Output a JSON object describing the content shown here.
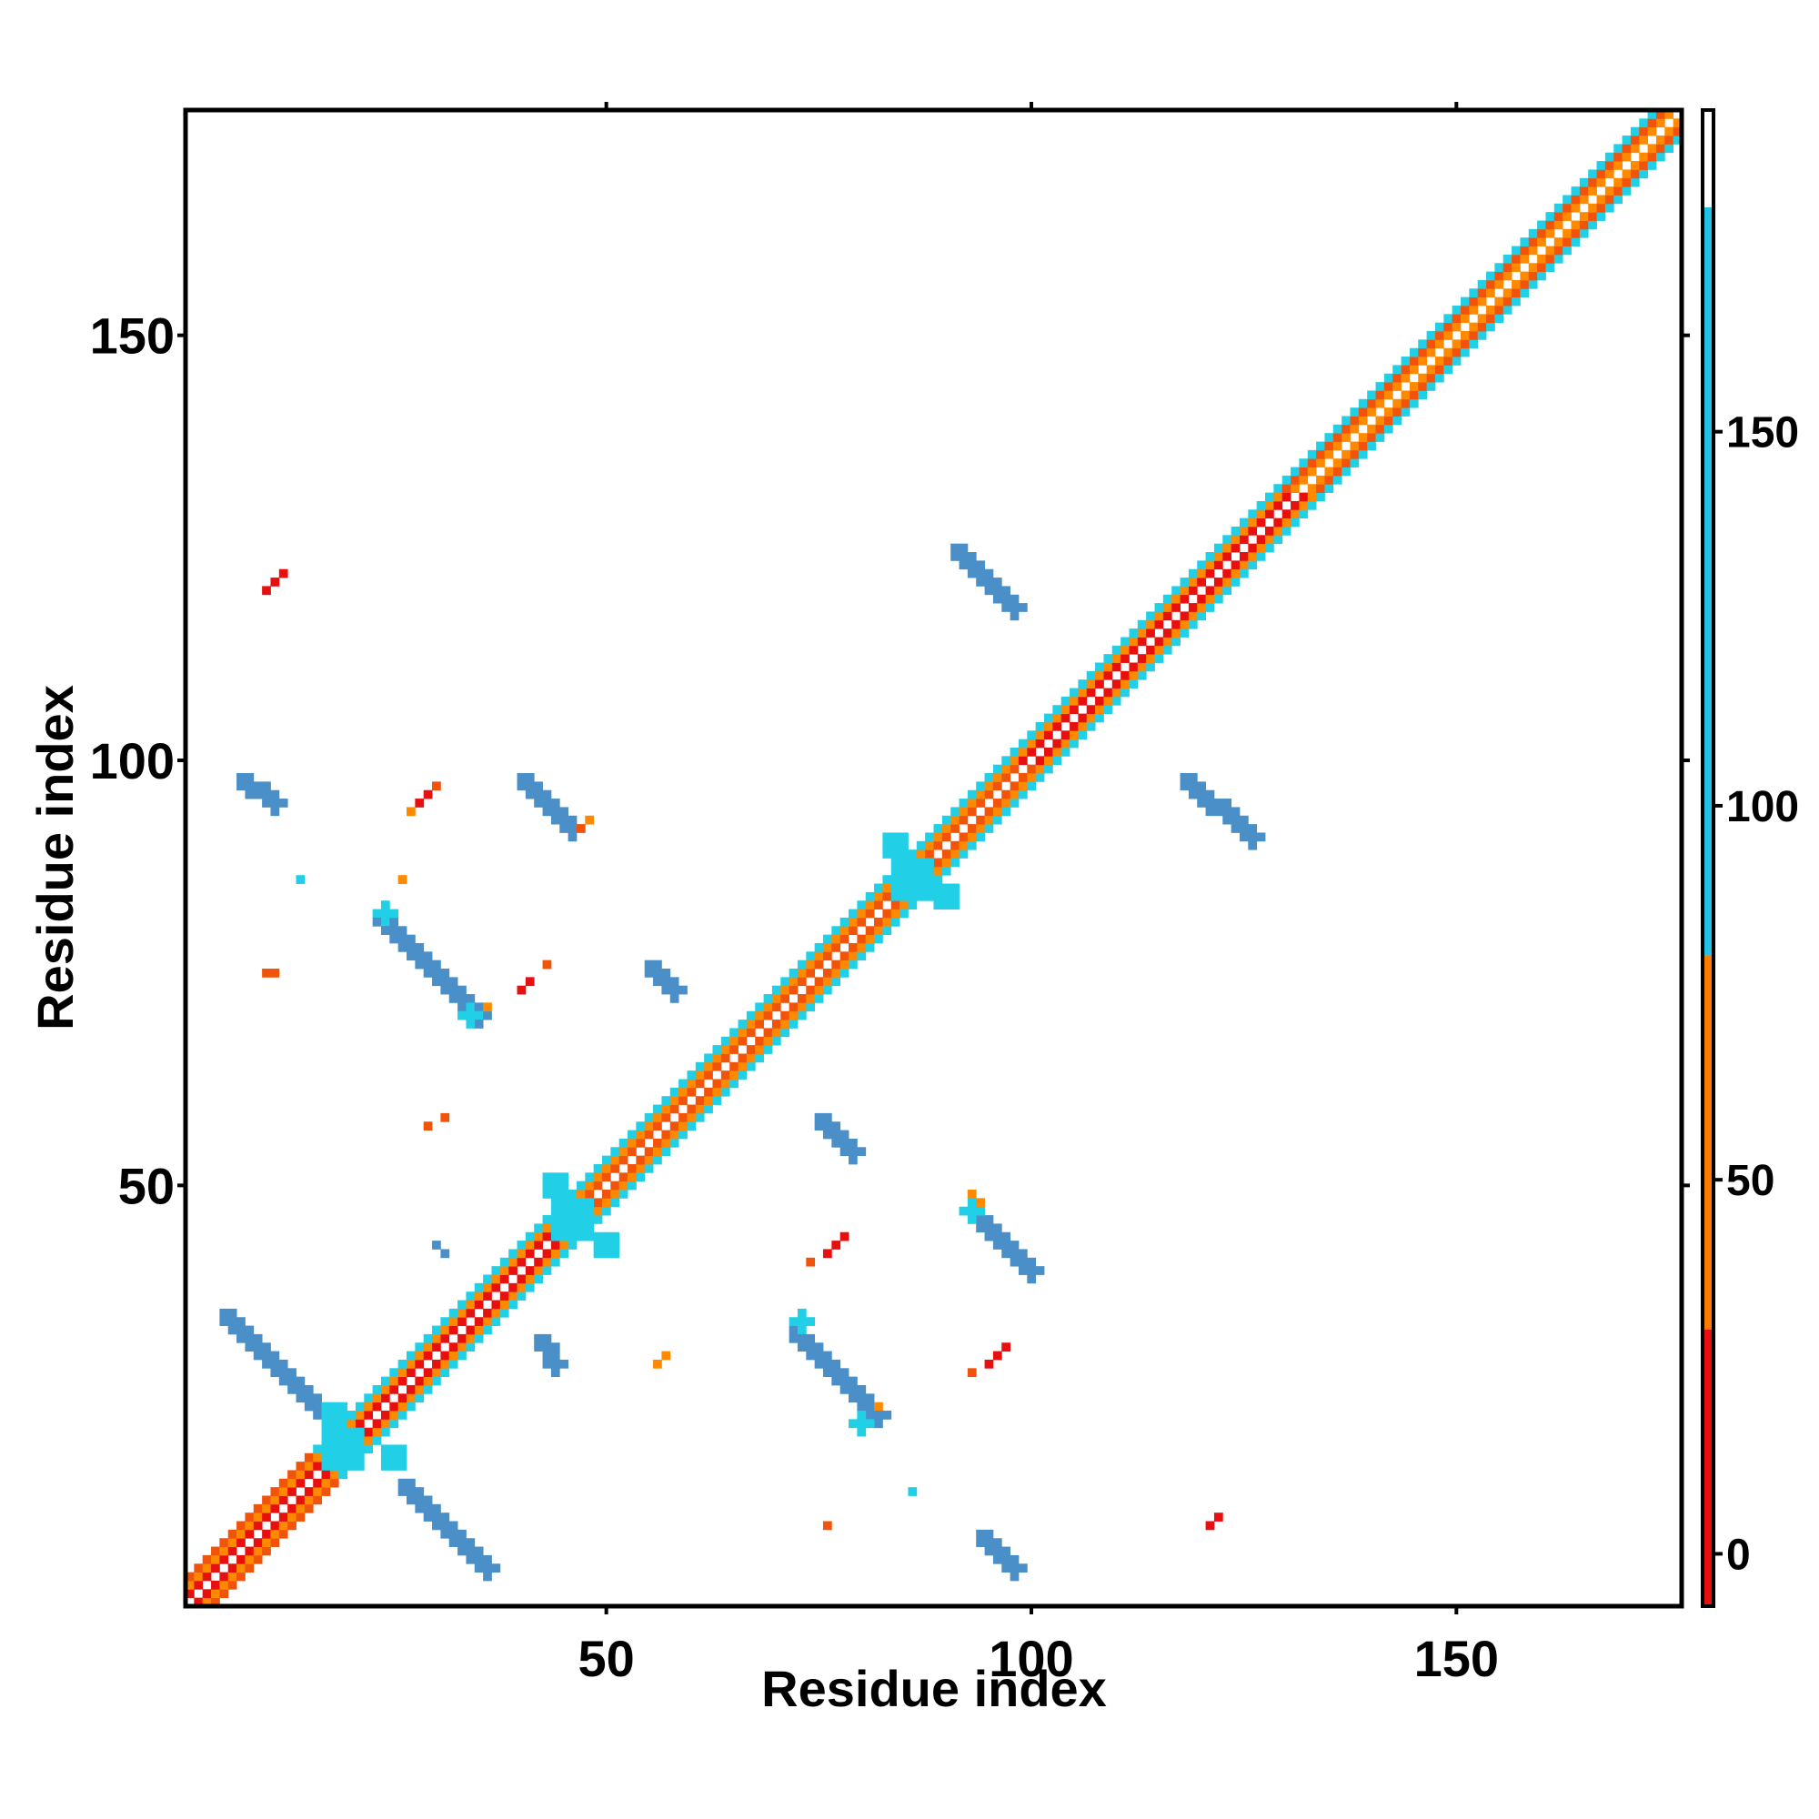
{
  "chart_data": {
    "type": "heatmap",
    "title": "",
    "xlabel": "Residue index",
    "ylabel": "Residue index",
    "xlim": [
      1,
      176
    ],
    "ylim": [
      1,
      176
    ],
    "x_ticks": [
      50,
      100,
      150
    ],
    "y_ticks": [
      50,
      100,
      150
    ],
    "colorbar": {
      "ticks": [
        0,
        50,
        100,
        150
      ],
      "range": [
        -7,
        193
      ],
      "bands": [
        {
          "from": -7,
          "to": 30,
          "color": "#e8100f"
        },
        {
          "from": 30,
          "to": 80,
          "color": "#ff7b00"
        },
        {
          "from": 80,
          "to": 180,
          "color": "#21c2e6"
        },
        {
          "from": 180,
          "to": 193,
          "color": "#ffffff"
        }
      ]
    },
    "palette": {
      "red": "#e8100f",
      "orange_red": "#f2530a",
      "orange": "#ff8a00",
      "cyan": "#21cfe6",
      "blue": "#4a8fc8"
    },
    "diagonal": {
      "start": 1,
      "end": 176,
      "segments": [
        {
          "from": 1,
          "to": 20,
          "colors": [
            "red",
            "orange",
            "orange_red"
          ]
        },
        {
          "from": 20,
          "to": 46,
          "colors": [
            "red",
            "orange",
            "cyan"
          ]
        },
        {
          "from": 46,
          "to": 100,
          "colors": [
            "orange_red",
            "orange",
            "cyan"
          ]
        },
        {
          "from": 100,
          "to": 132,
          "colors": [
            "red",
            "orange",
            "cyan"
          ]
        },
        {
          "from": 132,
          "to": 176,
          "colors": [
            "orange",
            "orange_red",
            "cyan"
          ]
        }
      ]
    },
    "contact_strips": [
      {
        "x1": 5,
        "y1": 35,
        "x2": 16,
        "y2": 24,
        "color": "blue"
      },
      {
        "x1": 26,
        "y1": 15,
        "x2": 36,
        "y2": 5,
        "color": "blue"
      },
      {
        "x1": 23,
        "y1": 82,
        "x2": 35,
        "y2": 70,
        "color": "blue"
      },
      {
        "x1": 40,
        "y1": 98,
        "x2": 46,
        "y2": 92,
        "color": "blue"
      },
      {
        "x1": 72,
        "y1": 33,
        "x2": 82,
        "y2": 23,
        "color": "blue"
      },
      {
        "x1": 94,
        "y1": 46,
        "x2": 100,
        "y2": 40,
        "color": "blue"
      },
      {
        "x1": 91,
        "y1": 125,
        "x2": 98,
        "y2": 118,
        "color": "blue"
      },
      {
        "x1": 118,
        "y1": 98,
        "x2": 126,
        "y2": 91,
        "color": "blue"
      },
      {
        "x1": 55,
        "y1": 76,
        "x2": 58,
        "y2": 73,
        "color": "blue"
      },
      {
        "x1": 75,
        "y1": 58,
        "x2": 79,
        "y2": 54,
        "color": "blue"
      },
      {
        "x1": 7,
        "y1": 98,
        "x2": 11,
        "y2": 95,
        "color": "blue"
      },
      {
        "x1": 94,
        "y1": 9,
        "x2": 98,
        "y2": 5,
        "color": "blue"
      },
      {
        "x1": 42,
        "y1": 32,
        "x2": 44,
        "y2": 29,
        "color": "blue"
      }
    ],
    "blobs": [
      {
        "x": 19,
        "y": 19,
        "r": 3,
        "color": "cyan"
      },
      {
        "x": 46,
        "y": 46,
        "r": 3,
        "color": "cyan"
      },
      {
        "x": 86,
        "y": 86,
        "r": 3,
        "color": "cyan"
      },
      {
        "x": 18,
        "y": 23,
        "r": 1.5,
        "color": "cyan"
      },
      {
        "x": 25,
        "y": 18,
        "r": 1.5,
        "color": "cyan"
      },
      {
        "x": 44,
        "y": 50,
        "r": 1.5,
        "color": "cyan"
      },
      {
        "x": 50,
        "y": 43,
        "r": 1.5,
        "color": "cyan"
      },
      {
        "x": 84,
        "y": 90,
        "r": 1.5,
        "color": "cyan"
      },
      {
        "x": 90,
        "y": 84,
        "r": 1.5,
        "color": "cyan"
      },
      {
        "x": 24,
        "y": 82,
        "r": 1.2,
        "color": "cyan"
      },
      {
        "x": 34,
        "y": 70,
        "r": 1.2,
        "color": "cyan"
      },
      {
        "x": 73,
        "y": 34,
        "r": 1.2,
        "color": "cyan"
      },
      {
        "x": 80,
        "y": 22,
        "r": 1.2,
        "color": "cyan"
      },
      {
        "x": 93,
        "y": 47,
        "r": 1.2,
        "color": "cyan"
      }
    ],
    "points": [
      {
        "x": 10,
        "y": 120,
        "color": "red"
      },
      {
        "x": 11,
        "y": 121,
        "color": "red"
      },
      {
        "x": 12,
        "y": 122,
        "color": "red"
      },
      {
        "x": 28,
        "y": 95,
        "color": "red"
      },
      {
        "x": 29,
        "y": 96,
        "color": "red"
      },
      {
        "x": 30,
        "y": 97,
        "color": "orange_red"
      },
      {
        "x": 27,
        "y": 94,
        "color": "orange"
      },
      {
        "x": 40,
        "y": 73,
        "color": "red"
      },
      {
        "x": 41,
        "y": 74,
        "color": "red"
      },
      {
        "x": 43,
        "y": 76,
        "color": "orange_red"
      },
      {
        "x": 36,
        "y": 71,
        "color": "orange"
      },
      {
        "x": 10,
        "y": 75,
        "color": "orange_red"
      },
      {
        "x": 11,
        "y": 75,
        "color": "orange_red"
      },
      {
        "x": 29,
        "y": 57,
        "color": "orange_red"
      },
      {
        "x": 31,
        "y": 58,
        "color": "orange_red"
      },
      {
        "x": 76,
        "y": 42,
        "color": "red"
      },
      {
        "x": 77,
        "y": 43,
        "color": "red"
      },
      {
        "x": 78,
        "y": 44,
        "color": "red"
      },
      {
        "x": 74,
        "y": 41,
        "color": "orange_red"
      },
      {
        "x": 56,
        "y": 29,
        "color": "orange"
      },
      {
        "x": 57,
        "y": 30,
        "color": "orange"
      },
      {
        "x": 95,
        "y": 29,
        "color": "red"
      },
      {
        "x": 96,
        "y": 30,
        "color": "red"
      },
      {
        "x": 93,
        "y": 28,
        "color": "orange_red"
      },
      {
        "x": 97,
        "y": 31,
        "color": "red"
      },
      {
        "x": 121,
        "y": 10,
        "color": "red"
      },
      {
        "x": 122,
        "y": 11,
        "color": "red"
      },
      {
        "x": 76,
        "y": 10,
        "color": "orange_red"
      },
      {
        "x": 86,
        "y": 14,
        "color": "cyan"
      },
      {
        "x": 14,
        "y": 86,
        "color": "cyan"
      },
      {
        "x": 26,
        "y": 86,
        "color": "orange"
      },
      {
        "x": 48,
        "y": 93,
        "color": "orange"
      },
      {
        "x": 47,
        "y": 92,
        "color": "orange_red"
      },
      {
        "x": 94,
        "y": 48,
        "color": "orange"
      },
      {
        "x": 93,
        "y": 49,
        "color": "orange"
      },
      {
        "x": 82,
        "y": 24,
        "color": "orange"
      },
      {
        "x": 30,
        "y": 43,
        "color": "blue"
      },
      {
        "x": 31,
        "y": 42,
        "color": "blue"
      }
    ]
  }
}
